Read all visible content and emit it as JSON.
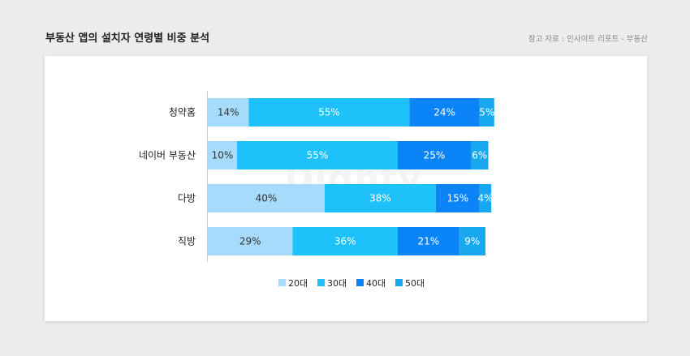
{
  "header": {
    "title": "부동산 앱의 설치자 연령별 비중 분석",
    "source": "참고 자료 : 인사이트 리포트 - 부동산"
  },
  "watermark": "Dighty",
  "chart_data": {
    "type": "bar",
    "orientation": "horizontal",
    "stacked": true,
    "unit": "%",
    "categories": [
      "청약홈",
      "네이버 부동산",
      "다방",
      "직방"
    ],
    "series": [
      {
        "name": "20대",
        "values": [
          14,
          10,
          40,
          29
        ],
        "color": "#a6dbfb"
      },
      {
        "name": "30대",
        "values": [
          55,
          55,
          38,
          36
        ],
        "color": "#1ec1fa"
      },
      {
        "name": "40대",
        "values": [
          24,
          25,
          15,
          21
        ],
        "color": "#0a84f6"
      },
      {
        "name": "50대",
        "values": [
          5,
          6,
          4,
          9
        ],
        "color": "#18a8f0"
      }
    ],
    "legend_position": "bottom-center",
    "grid": false
  }
}
